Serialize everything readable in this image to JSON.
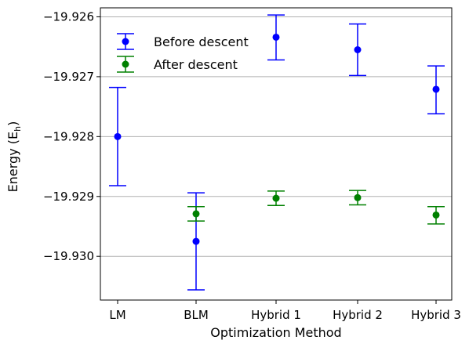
{
  "chart_data": {
    "type": "scatter",
    "xlabel": "Optimization Method",
    "ylabel_main": "Energy (E",
    "ylabel_sub": "h",
    "ylabel_close": ")",
    "categories": [
      "LM",
      "BLM",
      "Hybrid 1",
      "Hybrid 2",
      "Hybrid 3"
    ],
    "ylim": [
      -19.93073,
      -19.92585
    ],
    "yticks": [
      -19.926,
      -19.927,
      -19.928,
      -19.929,
      -19.93
    ],
    "ytick_labels": [
      "−19.926",
      "−19.927",
      "−19.928",
      "−19.929",
      "−19.930"
    ],
    "grid": "horizontal",
    "legend_position": "top-left",
    "series": [
      {
        "name": "Before descent",
        "color": "#0000ff",
        "values": [
          -19.928,
          -19.92975,
          -19.92634,
          -19.92655,
          -19.92721
        ],
        "err_low": [
          -19.92882,
          -19.93056,
          -19.92672,
          -19.92698,
          -19.92762
        ],
        "err_high": [
          -19.92718,
          -19.92894,
          -19.92597,
          -19.92612,
          -19.92682
        ]
      },
      {
        "name": "After descent",
        "color": "#008000",
        "values": [
          null,
          -19.92929,
          -19.92903,
          -19.92902,
          -19.92931
        ],
        "err_low": [
          null,
          -19.92941,
          -19.92915,
          -19.92914,
          -19.92946
        ],
        "err_high": [
          null,
          -19.92917,
          -19.92891,
          -19.9289,
          -19.92917
        ]
      }
    ]
  }
}
